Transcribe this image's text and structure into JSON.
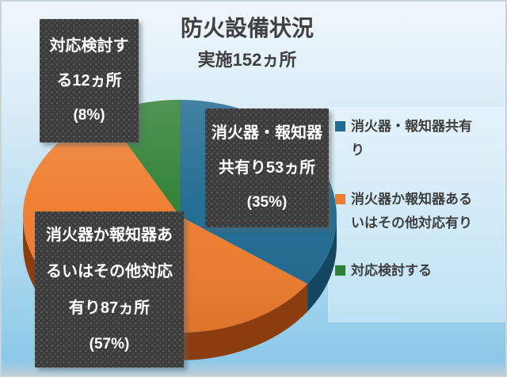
{
  "title": "防火設備状況",
  "subtitle": "実施152ヵ所",
  "chart_data": {
    "type": "pie",
    "style": "3d",
    "title": "防火設備状況",
    "subtitle": "実施152ヵ所",
    "total": 152,
    "unit": "ヵ所",
    "start_angle_deg": 0,
    "direction": "clockwise",
    "legend_position": "right",
    "slices": [
      {
        "name": "消火器・報知器共有り",
        "value": 53,
        "pct": 35,
        "color": "#1F6A90",
        "side_color": "#14465F"
      },
      {
        "name": "消火器か報知器あるいはその他対応有り",
        "value": 87,
        "pct": 57,
        "color": "#EE7D2E",
        "side_color": "#8C3D10"
      },
      {
        "name": "対応検討する",
        "value": 12,
        "pct": 8,
        "color": "#2E8033",
        "side_color": "#1E5723"
      }
    ]
  },
  "labels": [
    {
      "slice": "対応検討する",
      "lines": [
        "対応検討す",
        "る12ヵ所",
        "(8%)"
      ]
    },
    {
      "slice": "消火器・報知器共有り",
      "lines": [
        "消火器・報知器",
        "共有り53ヵ所",
        "(35%)"
      ]
    },
    {
      "slice": "消火器か報知器あるいはその他対応有り",
      "lines": [
        "消火器か報知器あ",
        "るいはその他対応",
        "有り87ヵ所",
        "(57%)"
      ]
    }
  ],
  "legend": {
    "items": [
      {
        "label": "消火器・報知器共有り",
        "lines": [
          "消火器・報知器共有",
          "り"
        ]
      },
      {
        "label": "消火器か報知器あるいはその他対応有り",
        "lines": [
          "消火器か報知器ある",
          "いはその他対応有り"
        ]
      },
      {
        "label": "対応検討する",
        "lines": [
          "対応検討する"
        ]
      }
    ]
  },
  "colors": {
    "background_top": "#EFF7FC",
    "background_bottom": "#8CC8E8",
    "frame_border": "#C9D4D9",
    "label_box_bg": "#3B3B3B",
    "label_text": "#FFFFFF",
    "title_text": "#3F3F3F"
  }
}
